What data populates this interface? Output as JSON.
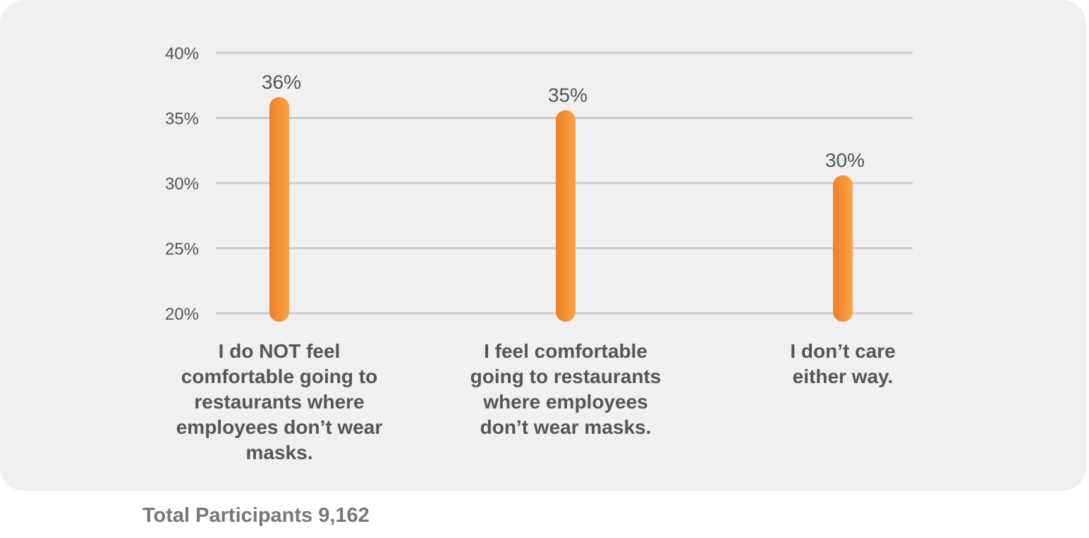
{
  "colors": {
    "panel": "#f0f0f0",
    "grid": "#cccccc",
    "bar_top": "#f08a2e",
    "bar": "#f7a040",
    "text": "#555555",
    "footer": "#777777"
  },
  "chart_data": {
    "type": "bar",
    "categories": [
      "I do NOT feel comfortable going to restaurants where employees don’t wear masks.",
      "I feel comfortable going to restaurants where employees don’t wear masks.",
      "I don’t care either way."
    ],
    "values": [
      36,
      35,
      30
    ],
    "value_labels": [
      "36%",
      "35%",
      "30%"
    ],
    "y_ticks": [
      20,
      25,
      30,
      35,
      40
    ],
    "y_tick_labels": [
      "20%",
      "25%",
      "30%",
      "35%",
      "40%"
    ],
    "ylim": [
      20,
      40
    ],
    "grid": true,
    "legend": "none"
  },
  "footer": {
    "text": "Total Participants 9,162"
  }
}
